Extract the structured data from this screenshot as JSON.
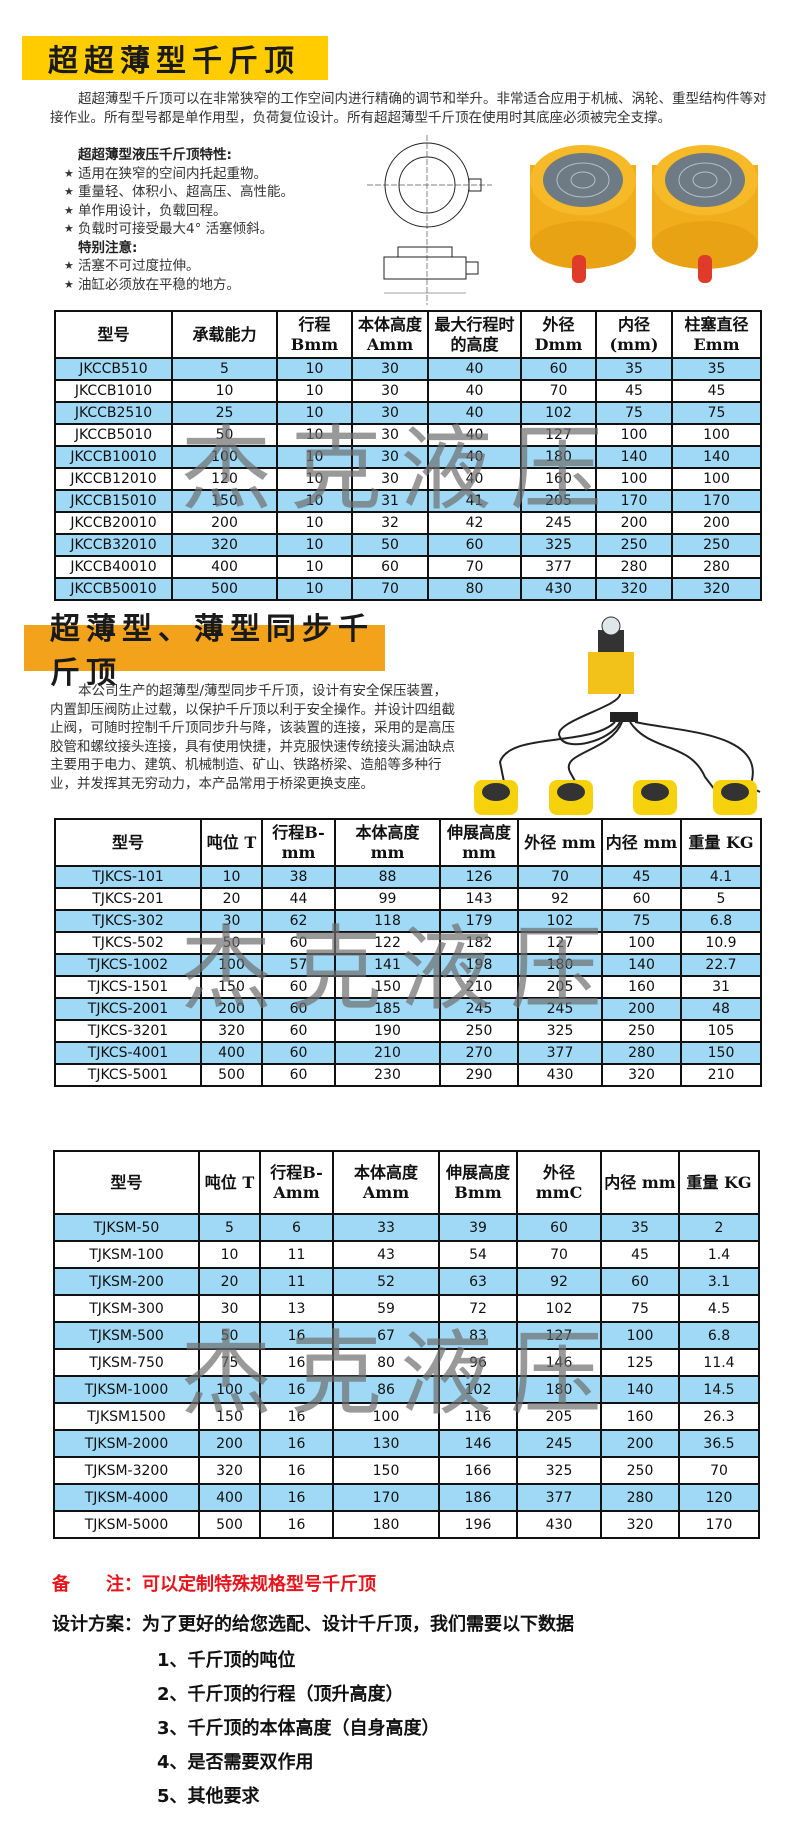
{
  "section1": {
    "title": "超超薄型千斤顶",
    "title_color": "#FFCC00",
    "description": "超超薄型千斤顶可以在非常狭窄的工作空间内进行精确的调节和举升。非常适合应用于机械、涡轮、重型结构件等对接作业。所有型号都是单作用型，负荷复位设计。所有超超薄型千斤顶在使用时其底座必须被完全支撑。",
    "features_heading": "超超薄型液压千斤顶特性:",
    "features": [
      "适用在狭窄的空间内托起重物。",
      "重量轻、体积小、超高压、高性能。",
      "单作用设计，负载回程。",
      "负载时可接受最大4° 活塞倾斜。"
    ],
    "caution_heading": "特别注意:",
    "cautions": [
      "活塞不可过度拉伸。",
      "油缸必须放在平稳的地方。"
    ],
    "table": {
      "headers": [
        "型号",
        "承载能力",
        "行程 Bmm",
        "本体高度 Amm",
        "最大行程时的高度",
        "外径 Dmm",
        "内径 (mm)",
        "柱塞直径 Emm"
      ],
      "rows": [
        [
          "JKCCB510",
          "5",
          "10",
          "30",
          "40",
          "60",
          "35",
          "35"
        ],
        [
          "JKCCB1010",
          "10",
          "10",
          "30",
          "40",
          "70",
          "45",
          "45"
        ],
        [
          "JKCCB2510",
          "25",
          "10",
          "30",
          "40",
          "102",
          "75",
          "75"
        ],
        [
          "JKCCB5010",
          "50",
          "10",
          "30",
          "40",
          "127",
          "100",
          "100"
        ],
        [
          "JKCCB10010",
          "100",
          "10",
          "30",
          "40",
          "180",
          "140",
          "140"
        ],
        [
          "JKCCB12010",
          "120",
          "10",
          "30",
          "40",
          "160",
          "100",
          "100"
        ],
        [
          "JKCCB15010",
          "150",
          "10",
          "31",
          "41",
          "205",
          "170",
          "170"
        ],
        [
          "JKCCB20010",
          "200",
          "10",
          "32",
          "42",
          "245",
          "200",
          "200"
        ],
        [
          "JKCCB32010",
          "320",
          "10",
          "50",
          "60",
          "325",
          "250",
          "250"
        ],
        [
          "JKCCB40010",
          "400",
          "10",
          "60",
          "70",
          "377",
          "280",
          "280"
        ],
        [
          "JKCCB50010",
          "500",
          "10",
          "70",
          "80",
          "430",
          "320",
          "320"
        ]
      ]
    }
  },
  "section2": {
    "title": "超薄型、薄型同步千斤顶",
    "title_color": "#F3A31B",
    "description": "本公司生产的超薄型/薄型同步千斤顶，设计有安全保压装置，内置卸压阀防止过载，以保护千斤顶以利于安全操作。并设计四组截止阀，可随时控制千斤顶同步升与降，该装置的连接，采用的是高压胶管和螺纹接头连接，具有使用快捷，并克服快速传统接头漏油缺点主要用于电力、建筑、机械制造、矿山、铁路桥梁、造船等多种行业，并发挥其无穷动力，本产品常用于桥梁更换支座。",
    "table": {
      "headers": [
        "型号",
        "吨位 T",
        "行程B- mm",
        "本体高度 mm",
        "伸展高度 mm",
        "外径 mm",
        "内径 mm",
        "重量 KG"
      ],
      "rows": [
        [
          "TJKCS-101",
          "10",
          "38",
          "88",
          "126",
          "70",
          "45",
          "4.1"
        ],
        [
          "TJKCS-201",
          "20",
          "44",
          "99",
          "143",
          "92",
          "60",
          "5"
        ],
        [
          "TJKCS-302",
          "30",
          "62",
          "118",
          "179",
          "102",
          "75",
          "6.8"
        ],
        [
          "TJKCS-502",
          "50",
          "60",
          "122",
          "182",
          "127",
          "100",
          "10.9"
        ],
        [
          "TJKCS-1002",
          "100",
          "57",
          "141",
          "198",
          "180",
          "140",
          "22.7"
        ],
        [
          "TJKCS-1501",
          "150",
          "60",
          "150",
          "210",
          "205",
          "160",
          "31"
        ],
        [
          "TJKCS-2001",
          "200",
          "60",
          "185",
          "245",
          "245",
          "200",
          "48"
        ],
        [
          "TJKCS-3201",
          "320",
          "60",
          "190",
          "250",
          "325",
          "250",
          "105"
        ],
        [
          "TJKCS-4001",
          "400",
          "60",
          "210",
          "270",
          "377",
          "280",
          "150"
        ],
        [
          "TJKCS-5001",
          "500",
          "60",
          "230",
          "290",
          "430",
          "320",
          "210"
        ]
      ]
    }
  },
  "section3": {
    "table": {
      "headers": [
        "型号",
        "吨位 T",
        "行程B- Amm",
        "本体高度 Amm",
        "伸展高度Bmm",
        "外径 mmC",
        "内径 mm",
        "重量 KG"
      ],
      "rows": [
        [
          "TJKSM-50",
          "5",
          "6",
          "33",
          "39",
          "60",
          "35",
          "2"
        ],
        [
          "TJKSM-100",
          "10",
          "11",
          "43",
          "54",
          "70",
          "45",
          "1.4"
        ],
        [
          "TJKSM-200",
          "20",
          "11",
          "52",
          "63",
          "92",
          "60",
          "3.1"
        ],
        [
          "TJKSM-300",
          "30",
          "13",
          "59",
          "72",
          "102",
          "75",
          "4.5"
        ],
        [
          "TJKSM-500",
          "50",
          "16",
          "67",
          "83",
          "127",
          "100",
          "6.8"
        ],
        [
          "TJKSM-750",
          "75",
          "16",
          "80",
          "96",
          "146",
          "125",
          "11.4"
        ],
        [
          "TJKSM-1000",
          "100",
          "16",
          "86",
          "102",
          "180",
          "140",
          "14.5"
        ],
        [
          "TJKSM1500",
          "150",
          "16",
          "100",
          "116",
          "205",
          "160",
          "26.3"
        ],
        [
          "TJKSM-2000",
          "200",
          "16",
          "130",
          "146",
          "245",
          "200",
          "36.5"
        ],
        [
          "TJKSM-3200",
          "320",
          "16",
          "150",
          "166",
          "325",
          "250",
          "70"
        ],
        [
          "TJKSM-4000",
          "400",
          "16",
          "170",
          "186",
          "377",
          "280",
          "120"
        ],
        [
          "TJKSM-5000",
          "500",
          "16",
          "180",
          "196",
          "430",
          "320",
          "170"
        ]
      ]
    }
  },
  "watermark": "杰克液压",
  "row_colors": {
    "blue": "#9FD9F6",
    "white": "#FFFFFF"
  },
  "note": {
    "label": "备　　注",
    "text": "：可以定制特殊规格型号千斤顶",
    "color": "#E8141C"
  },
  "design": {
    "label": "设计方案",
    "text": "：为了更好的给您选配、设计千斤顶，我们需要以下数据",
    "items": [
      "1、千斤顶的吨位",
      "2、千斤顶的行程（顶升高度）",
      "3、千斤顶的本体高度（自身高度）",
      "4、是否需要双作用",
      "5、其他要求"
    ]
  }
}
